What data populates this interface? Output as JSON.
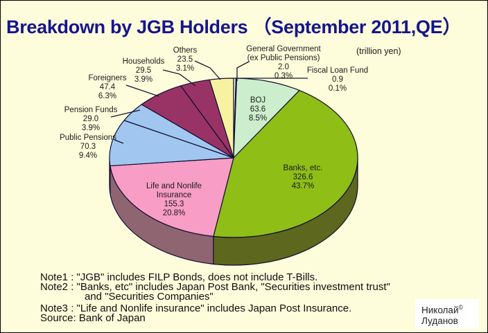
{
  "chart_data": {
    "type": "pie",
    "title": "Breakdown by JGB Holders （September 2011,QE）",
    "unit": "trillion yen",
    "unit_label": "(trillion yen)",
    "legend_position": "none",
    "slices": [
      {
        "name": "General Government (ex Public Pensions)",
        "label_lines": [
          "General Government",
          "(ex Public Pensions)"
        ],
        "value": 2.0,
        "value_label": "2.0",
        "percent": 0.3,
        "pct_label": "0.3%",
        "color": "#FFFFFF",
        "label": "outside"
      },
      {
        "name": "Fiscal Loan Fund",
        "label_lines": [
          "Fiscal Loan Fund"
        ],
        "value": 0.9,
        "value_label": "0.9",
        "percent": 0.1,
        "pct_label": "0.1%",
        "color": "#FFFFFF",
        "label": "outside"
      },
      {
        "name": "BOJ",
        "label_lines": [
          "BOJ"
        ],
        "value": 63.6,
        "value_label": "63.6",
        "percent": 8.5,
        "pct_label": "8.5%",
        "color": "#CDEECD",
        "label": "inside"
      },
      {
        "name": "Banks, etc.",
        "label_lines": [
          "Banks, etc."
        ],
        "value": 326.6,
        "value_label": "326.6",
        "percent": 43.7,
        "pct_label": "43.7%",
        "color": "#8FBE17",
        "side_color": "#5D671D",
        "label": "inside"
      },
      {
        "name": "Life and Nonlife Insurance",
        "label_lines": [
          "Life and Nonlife",
          "Insurance"
        ],
        "value": 155.3,
        "value_label": "155.3",
        "percent": 20.8,
        "pct_label": "20.8%",
        "color": "#F79DC6",
        "side_color": "#8F6572",
        "label": "inside"
      },
      {
        "name": "Public Pensions",
        "label_lines": [
          "Public Pensions"
        ],
        "value": 70.3,
        "value_label": "70.3",
        "percent": 9.4,
        "pct_label": "9.4%",
        "color": "#A1C7F0",
        "side_color": "#5F7791",
        "label": "outside"
      },
      {
        "name": "Pension Funds",
        "label_lines": [
          "Pension Funds"
        ],
        "value": 29.0,
        "value_label": "29.0",
        "percent": 3.9,
        "pct_label": "3.9%",
        "color": "#A1C7F0",
        "label": "outside"
      },
      {
        "name": "Foreigners",
        "label_lines": [
          "Foreigners"
        ],
        "value": 47.4,
        "value_label": "47.4",
        "percent": 6.3,
        "pct_label": "6.3%",
        "color": "#993366",
        "label": "outside"
      },
      {
        "name": "Households",
        "label_lines": [
          "Households"
        ],
        "value": 29.5,
        "value_label": "29.5",
        "percent": 3.9,
        "pct_label": "3.9%",
        "color": "#993366",
        "label": "outside"
      },
      {
        "name": "Others",
        "label_lines": [
          "Others"
        ],
        "value": 23.5,
        "value_label": "23.5",
        "percent": 3.1,
        "pct_label": "3.1%",
        "color": "#F7F2A0",
        "label": "outside"
      }
    ]
  },
  "notes": {
    "lines": [
      "Note1 : \"JGB\" includes FILP Bonds, does not include T-Bills.",
      "Note2 : \"Banks, etc\" includes Japan Post Bank, \"Securities investment trust\"",
      "and \"Securities Companies\"",
      "Note3 : \"Life and Nonlife insurance\" includes Japan Post Insurance.",
      "Source: Bank of Japan"
    ]
  },
  "watermark": {
    "name_line": "Николай",
    "copyright": "©",
    "surname_line": "Луданов"
  },
  "colors": {
    "background": "#FDFCDB",
    "title": "#15158C",
    "outline": "#0D0D2F",
    "banks_green": "#8FBE17",
    "boj_mint": "#CDEECD",
    "insurance_pink": "#F79DC6",
    "pensions_blue": "#A1C7F0",
    "foreigners_maroon": "#993366",
    "others_yellow": "#F7F2A0"
  }
}
